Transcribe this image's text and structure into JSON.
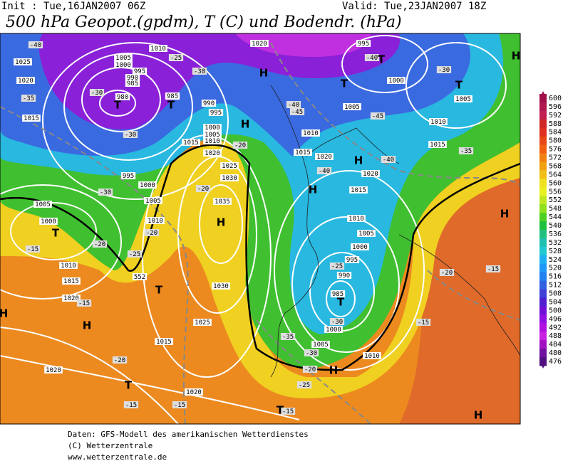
{
  "header": {
    "init": "Init : Tue,16JAN2007 06Z",
    "valid": "Valid: Tue,23JAN2007 18Z"
  },
  "title": "500 hPa Geopot.(gpdm), T (C) und Bodendr. (hPa)",
  "footer": [
    "Daten: GFS-Modell des amerikanischen Wetterdienstes",
    "(C) Wetterzentrale",
    "www.wetterzentrale.de"
  ],
  "colorbar": {
    "labels": [
      600,
      596,
      592,
      588,
      584,
      580,
      576,
      572,
      568,
      564,
      560,
      556,
      552,
      548,
      544,
      540,
      536,
      532,
      528,
      524,
      520,
      516,
      512,
      508,
      504,
      500,
      496,
      492,
      488,
      484,
      480,
      476
    ],
    "colors": [
      "#a0104a",
      "#b01850",
      "#c02050",
      "#d02828",
      "#e03020",
      "#e84818",
      "#f06010",
      "#f08010",
      "#f0a010",
      "#f0c018",
      "#f0e020",
      "#e8f020",
      "#c0e820",
      "#90e020",
      "#50d020",
      "#20c040",
      "#20c080",
      "#20c0b0",
      "#20c8d0",
      "#20b0f0",
      "#2098f8",
      "#2080f0",
      "#3060e0",
      "#4040d8",
      "#5020d0",
      "#7010d8",
      "#9010e0",
      "#b010e0",
      "#c820e0",
      "#a010c0",
      "#7010a0",
      "#501080"
    ]
  },
  "map_labels": {
    "pressure": [
      1010,
      1005,
      1000,
      995,
      990,
      985,
      980,
      985,
      990,
      995,
      1000,
      1005,
      1010,
      1015,
      1020,
      1025,
      1030,
      1035,
      1030,
      1025,
      1015,
      1020,
      1020,
      1020,
      1015,
      1010,
      1005,
      1000,
      995,
      1000,
      1005,
      1010,
      1025,
      1020,
      1015,
      1020,
      995,
      1000,
      1005,
      1010,
      1015,
      1020,
      1020,
      1015,
      1010,
      1005,
      1000,
      995,
      990,
      985,
      1000,
      1005,
      1010,
      1005,
      1010,
      1015
    ],
    "temperature": [
      -40,
      -35,
      -30,
      -30,
      -30,
      -30,
      -25,
      -20,
      -20,
      -20,
      -25,
      -20,
      -15,
      -15,
      -40,
      -45,
      -45,
      -40,
      -40,
      -35,
      -30,
      -40,
      -35,
      -30,
      -25,
      -30,
      -20,
      -15,
      -15,
      -15,
      -15,
      -15,
      -20,
      -25,
      -20
    ],
    "centers": [
      "H",
      "T",
      "H",
      "T",
      "T",
      "H",
      "H",
      "H",
      "H",
      "H",
      "H",
      "H",
      "H",
      "H",
      "T",
      "T",
      "T",
      "T",
      "T",
      "T",
      "T",
      "T"
    ],
    "contour": 552
  }
}
